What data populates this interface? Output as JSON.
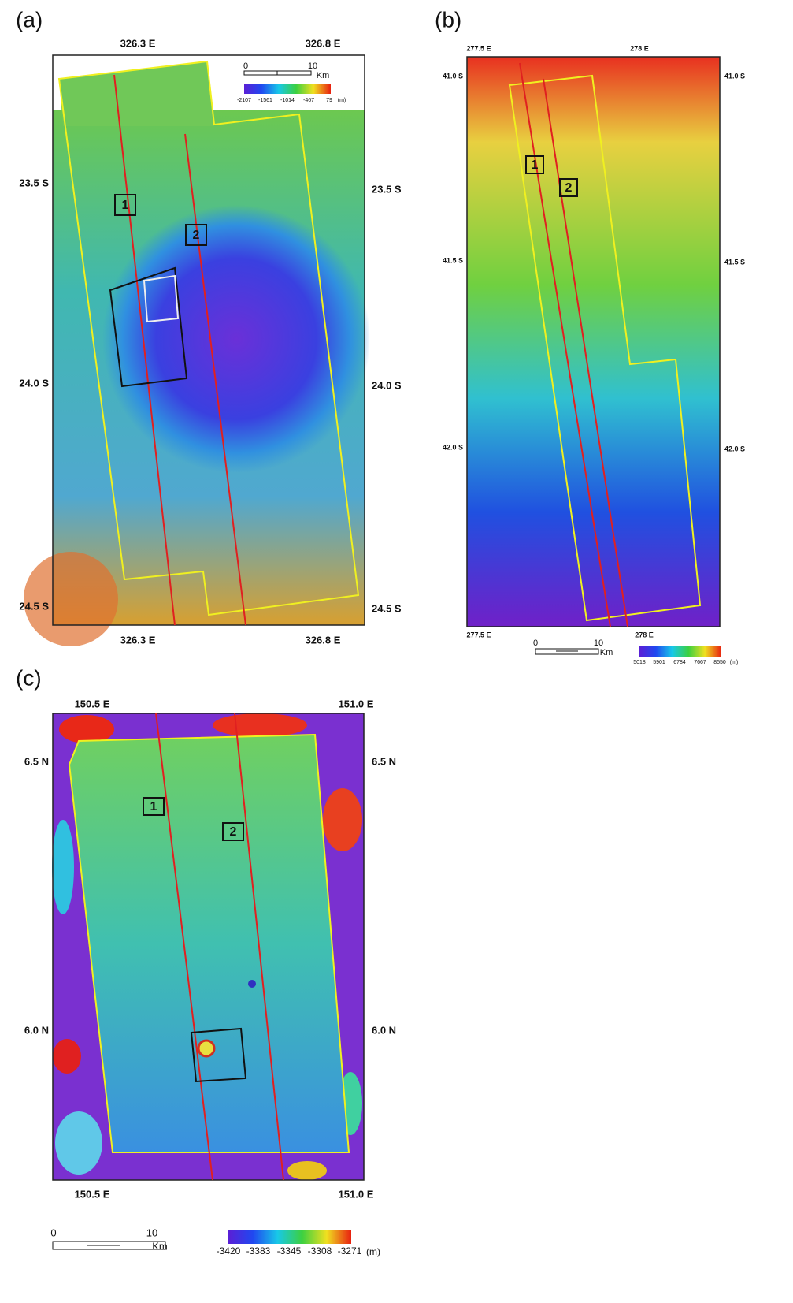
{
  "panels": [
    {
      "label": "(a)",
      "top_ticks": [
        "326.3 E",
        "326.8 E"
      ],
      "bottom_ticks": [
        "326.3 E",
        "326.8 E"
      ],
      "left_ticks": [
        "23.5 S",
        "24.0 S",
        "24.5 S"
      ],
      "right_ticks": [
        "23.5 S",
        "24.0 S",
        "24.5 S"
      ],
      "boxes": [
        "1",
        "2"
      ],
      "scale_bar": {
        "start": "0",
        "end": "10",
        "unit": "Km"
      },
      "color_legend": {
        "labels": [
          "-2107",
          "-1561",
          "-1014",
          "-467",
          "79"
        ],
        "unit": "(m)"
      }
    },
    {
      "label": "(b)",
      "top_ticks": [
        "277.5 E",
        "278 E"
      ],
      "bottom_ticks": [
        "277.5 E",
        "278 E"
      ],
      "left_ticks": [
        "41.0 S",
        "41.5 S",
        "42.0 S"
      ],
      "right_ticks": [
        "41.0 S",
        "41.5 S",
        "42.0 S"
      ],
      "boxes": [
        "1",
        "2"
      ],
      "scale_bar": {
        "start": "0",
        "end": "10",
        "unit": "Km"
      },
      "color_legend": {
        "labels": [
          "5018",
          "5901",
          "6784",
          "7667",
          "8550"
        ],
        "unit": "(m)"
      }
    },
    {
      "label": "(c)",
      "top_ticks": [
        "150.5 E",
        "151.0 E"
      ],
      "bottom_ticks": [
        "150.5 E",
        "151.0 E"
      ],
      "left_ticks": [
        "6.5 N",
        "6.0 N"
      ],
      "right_ticks": [
        "6.5 N",
        "6.0 N"
      ],
      "boxes": [
        "1",
        "2"
      ],
      "scale_bar": {
        "start": "0",
        "end": "10",
        "unit": "Km"
      },
      "color_legend": {
        "labels": [
          "-3420",
          "-3383",
          "-3345",
          "-3308",
          "-3271"
        ],
        "unit": "(m)"
      }
    }
  ]
}
